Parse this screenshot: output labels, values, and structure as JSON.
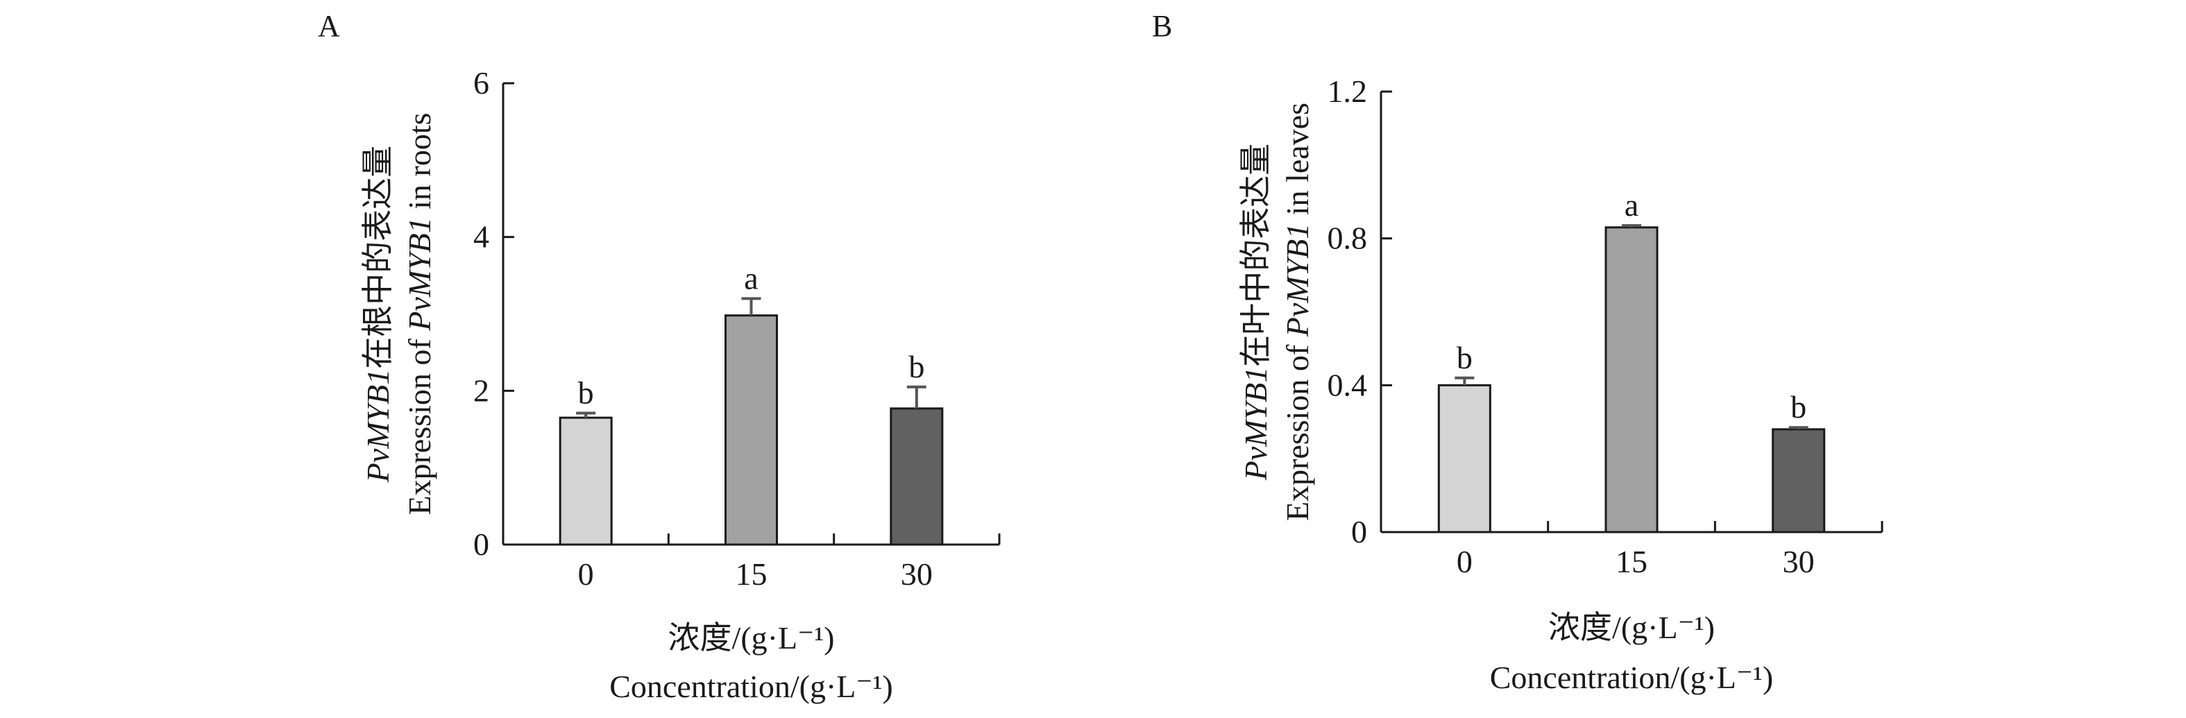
{
  "chart_data": [
    {
      "type": "bar",
      "panel_label": "A",
      "categories": [
        "0",
        "15",
        "30"
      ],
      "values": [
        1.65,
        2.98,
        1.77
      ],
      "errors": [
        0.06,
        0.22,
        0.28
      ],
      "significance": [
        "b",
        "a",
        "b"
      ],
      "bar_colors": [
        "#d4d4d4",
        "#a2a2a2",
        "#616161"
      ],
      "ylim": [
        0,
        6
      ],
      "yticks": [
        "0",
        "2",
        "4",
        "6"
      ],
      "ytick_values": [
        0,
        2,
        4,
        6
      ],
      "ylabel_line1_italic": "PvMYB1",
      "ylabel_line1_rest": "在根中的表达量",
      "ylabel_line2_pre": "Expression of ",
      "ylabel_line2_italic": "PvMYB1",
      "ylabel_line2_post": " in roots",
      "xlabel_line1": "浓度/(g·L⁻¹)",
      "xlabel_line2": "Concentration/(g·L⁻¹)"
    },
    {
      "type": "bar",
      "panel_label": "B",
      "categories": [
        "0",
        "15",
        "30"
      ],
      "values": [
        0.4,
        0.83,
        0.28
      ],
      "errors": [
        0.02,
        0.005,
        0.005
      ],
      "significance": [
        "b",
        "a",
        "b"
      ],
      "bar_colors": [
        "#d4d4d4",
        "#a2a2a2",
        "#616161"
      ],
      "ylim": [
        0,
        1.2
      ],
      "yticks": [
        "0",
        "0.4",
        "0.8",
        "1.2"
      ],
      "ytick_values": [
        0,
        0.4,
        0.8,
        1.2
      ],
      "ylabel_line1_italic": "PvMYB1",
      "ylabel_line1_rest": "在叶中的表达量",
      "ylabel_line2_pre": "Expression of ",
      "ylabel_line2_italic": "PvMYB1",
      "ylabel_line2_post": " in leaves",
      "xlabel_line1": "浓度/(g·L⁻¹)",
      "xlabel_line2": "Concentration/(g·L⁻¹)"
    }
  ]
}
